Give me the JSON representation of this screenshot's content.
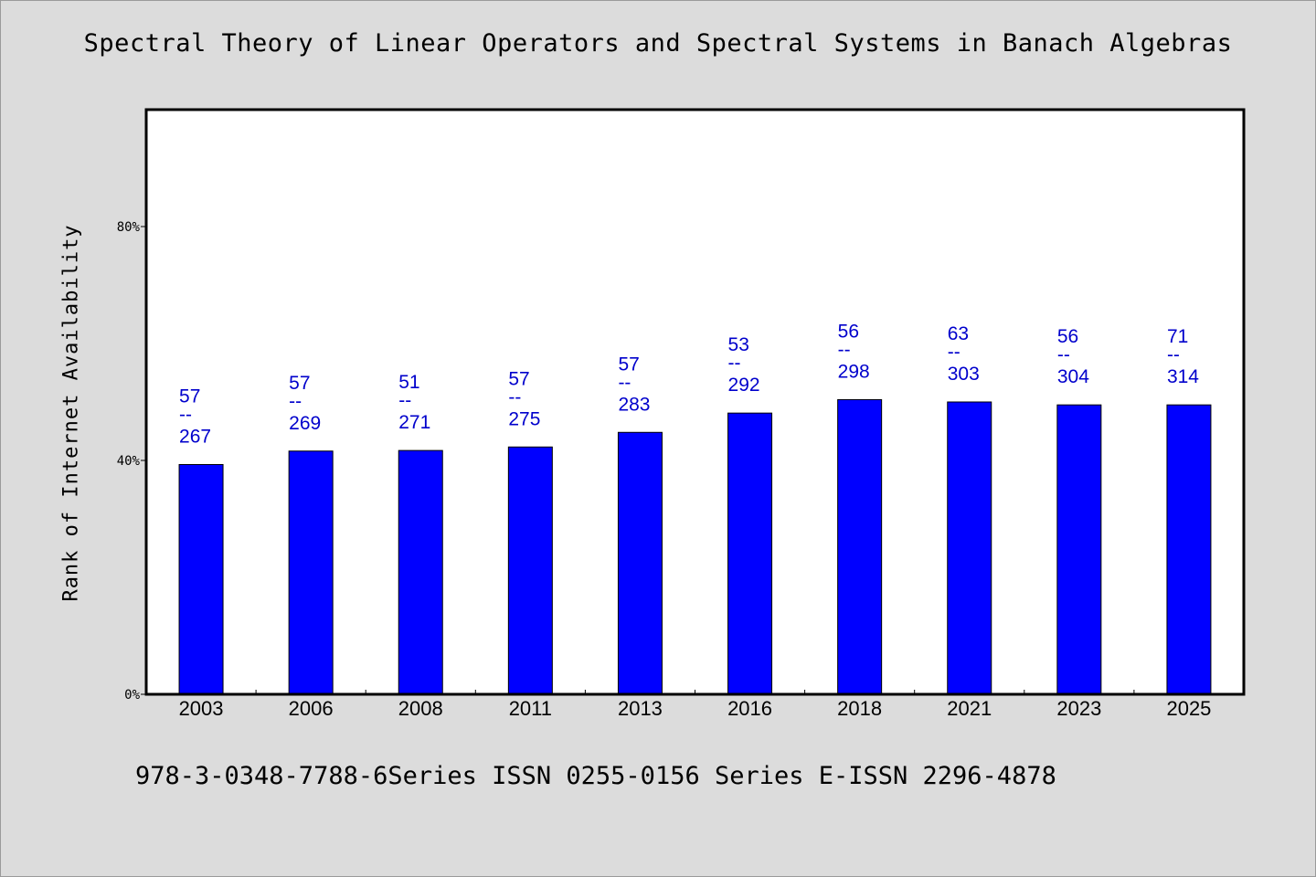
{
  "title": "Spectral Theory of Linear Operators and Spectral Systems in Banach Algebras",
  "footer": "978-3-0348-7788-6Series ISSN 0255-0156 Series E-ISSN 2296-4878",
  "colors": {
    "bar": "#0000ff",
    "label": "#0000cc",
    "background": "#dcdcdc",
    "plot": "#ffffff"
  },
  "chart_data": {
    "type": "bar",
    "title": "Spectral Theory of Linear Operators and Spectral Systems in Banach Algebras",
    "xlabel": "",
    "ylabel": "Rank of Internet Availability",
    "ylim": [
      0,
      100
    ],
    "yticks": [
      0,
      40,
      80
    ],
    "ytick_labels": [
      "0%",
      "40%",
      "80%"
    ],
    "grid": false,
    "categories": [
      "2003",
      "2006",
      "2008",
      "2011",
      "2013",
      "2016",
      "2018",
      "2021",
      "2023",
      "2025"
    ],
    "values": [
      39.3,
      41.6,
      41.7,
      42.3,
      44.8,
      48.1,
      50.4,
      50.0,
      49.5,
      49.5
    ],
    "labels": [
      {
        "num": "57",
        "sep": "--",
        "den": "267"
      },
      {
        "num": "57",
        "sep": "--",
        "den": "269"
      },
      {
        "num": "51",
        "sep": "--",
        "den": "271"
      },
      {
        "num": "57",
        "sep": "--",
        "den": "275"
      },
      {
        "num": "57",
        "sep": "--",
        "den": "283"
      },
      {
        "num": "53",
        "sep": "--",
        "den": "292"
      },
      {
        "num": "56",
        "sep": "--",
        "den": "298"
      },
      {
        "num": "63",
        "sep": "--",
        "den": "303"
      },
      {
        "num": "56",
        "sep": "--",
        "den": "304"
      },
      {
        "num": "71",
        "sep": "--",
        "den": "314"
      }
    ]
  }
}
